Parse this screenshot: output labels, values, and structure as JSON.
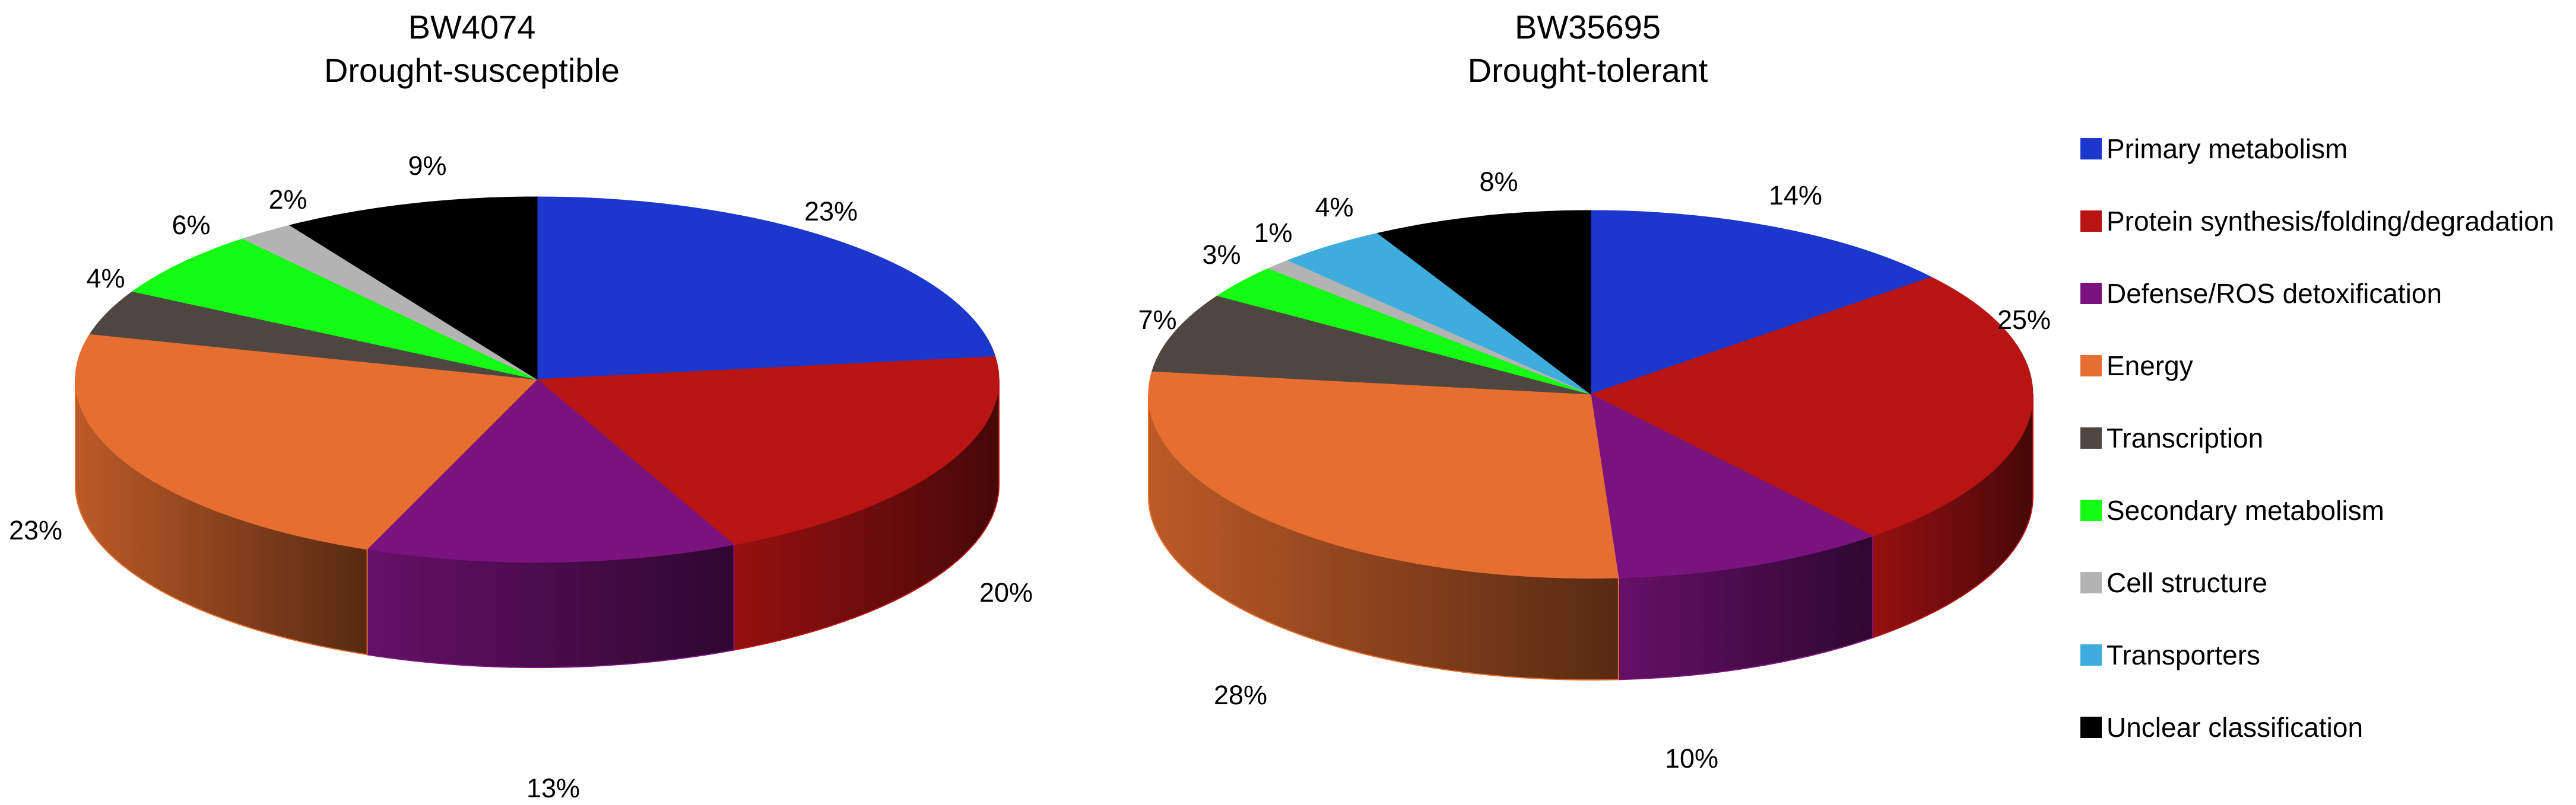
{
  "chart_data": [
    {
      "type": "pie",
      "title": "BW4074",
      "subtitle": "Drought-susceptible",
      "labels": [
        "Primary metabolism",
        "Protein synthesis/folding/degradation",
        "Defense/ROS detoxification",
        "Energy",
        "Transcription",
        "Secondary metabolism",
        "Cell structure",
        "Unclear classification"
      ],
      "values": [
        23,
        20,
        13,
        23,
        4,
        6,
        2,
        9
      ],
      "value_labels": [
        "23%",
        "20%",
        "13%",
        "23%",
        "4%",
        "6%",
        "2%",
        "9%"
      ],
      "colors": [
        "#1b37cc",
        "#b81414",
        "#7b137e",
        "#e56e30",
        "#4e4640",
        "#14fb14",
        "#b3b3b3",
        "#000000"
      ],
      "style": "3d-pie"
    },
    {
      "type": "pie",
      "title": "BW35695",
      "subtitle": "Drought-tolerant",
      "labels": [
        "Primary metabolism",
        "Protein synthesis/folding/degradation",
        "Defense/ROS detoxification",
        "Energy",
        "Transcription",
        "Secondary metabolism",
        "Cell structure",
        "Transporters",
        "Unclear classification"
      ],
      "values": [
        14,
        25,
        10,
        28,
        7,
        3,
        1,
        4,
        8
      ],
      "value_labels": [
        "14%",
        "25%",
        "10%",
        "28%",
        "7%",
        "3%",
        "1%",
        "4%",
        "8%"
      ],
      "colors": [
        "#1b37cc",
        "#b81414",
        "#7b137e",
        "#e56e30",
        "#4e4640",
        "#14fb14",
        "#b3b3b3",
        "#3facde",
        "#000000"
      ],
      "style": "3d-pie"
    }
  ],
  "legend": {
    "position": "right",
    "items": [
      {
        "label": "Primary metabolism",
        "color": "#1b37cc"
      },
      {
        "label": "Protein synthesis/folding/degradation",
        "color": "#b81414"
      },
      {
        "label": "Defense/ROS detoxification",
        "color": "#7b137e"
      },
      {
        "label": "Energy",
        "color": "#e56e30"
      },
      {
        "label": "Transcription",
        "color": "#4e4640"
      },
      {
        "label": "Secondary metabolism",
        "color": "#14fb14"
      },
      {
        "label": "Cell structure",
        "color": "#b3b3b3"
      },
      {
        "label": "Transporters",
        "color": "#3facde"
      },
      {
        "label": "Unclear classification",
        "color": "#000000"
      }
    ]
  }
}
